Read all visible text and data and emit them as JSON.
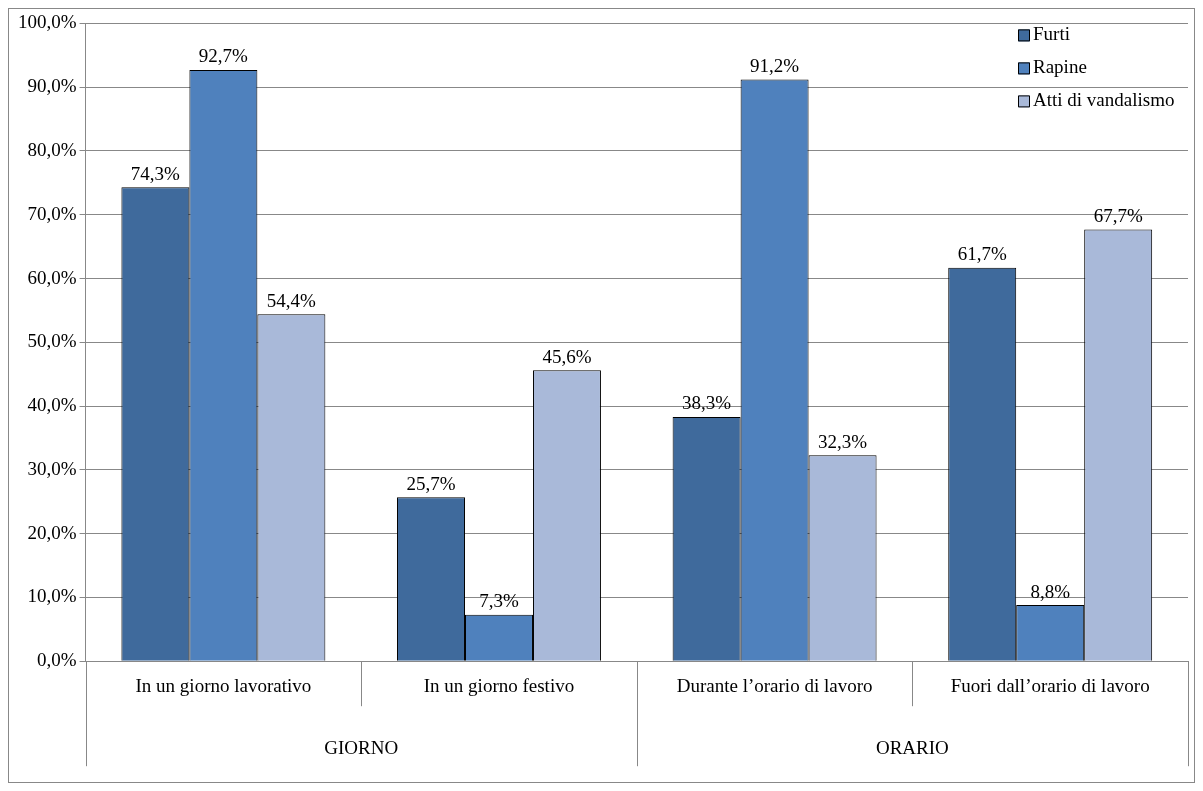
{
  "chart_data": {
    "type": "bar",
    "categories": [
      "In un giorno lavorativo",
      "In un giorno festivo",
      "Durante l’orario di lavoro",
      "Fuori dall’orario di lavoro"
    ],
    "series": [
      {
        "name": "Furti",
        "color": "#3f6a9c",
        "values": [
          74.3,
          25.7,
          38.3,
          61.7
        ],
        "value_labels": [
          "74,3%",
          "25,7%",
          "38,3%",
          "61,7%"
        ]
      },
      {
        "name": "Rapine",
        "color": "#4f81bd",
        "values": [
          92.7,
          7.3,
          91.2,
          8.8
        ],
        "value_labels": [
          "92,7%",
          "7,3%",
          "91,2%",
          "8,8%"
        ]
      },
      {
        "name": "Atti di vandalismo",
        "color": "#a9b9d9",
        "values": [
          54.4,
          45.6,
          32.3,
          67.7
        ],
        "value_labels": [
          "54,4%",
          "45,6%",
          "32,3%",
          "67,7%"
        ]
      }
    ],
    "ylim": [
      0,
      100
    ],
    "yticks": [
      {
        "value": 0,
        "label": "0,0%"
      },
      {
        "value": 10,
        "label": "10,0%"
      },
      {
        "value": 20,
        "label": "20,0%"
      },
      {
        "value": 30,
        "label": "30,0%"
      },
      {
        "value": 40,
        "label": "40,0%"
      },
      {
        "value": 50,
        "label": "50,0%"
      },
      {
        "value": 60,
        "label": "60,0%"
      },
      {
        "value": 70,
        "label": "70,0%"
      },
      {
        "value": 80,
        "label": "80,0%"
      },
      {
        "value": 90,
        "label": "90,0%"
      },
      {
        "value": 100,
        "label": "100,0%"
      }
    ],
    "grid": "y",
    "legend": "top right",
    "annotations": [
      "GIORNO",
      "ORARIO"
    ]
  }
}
